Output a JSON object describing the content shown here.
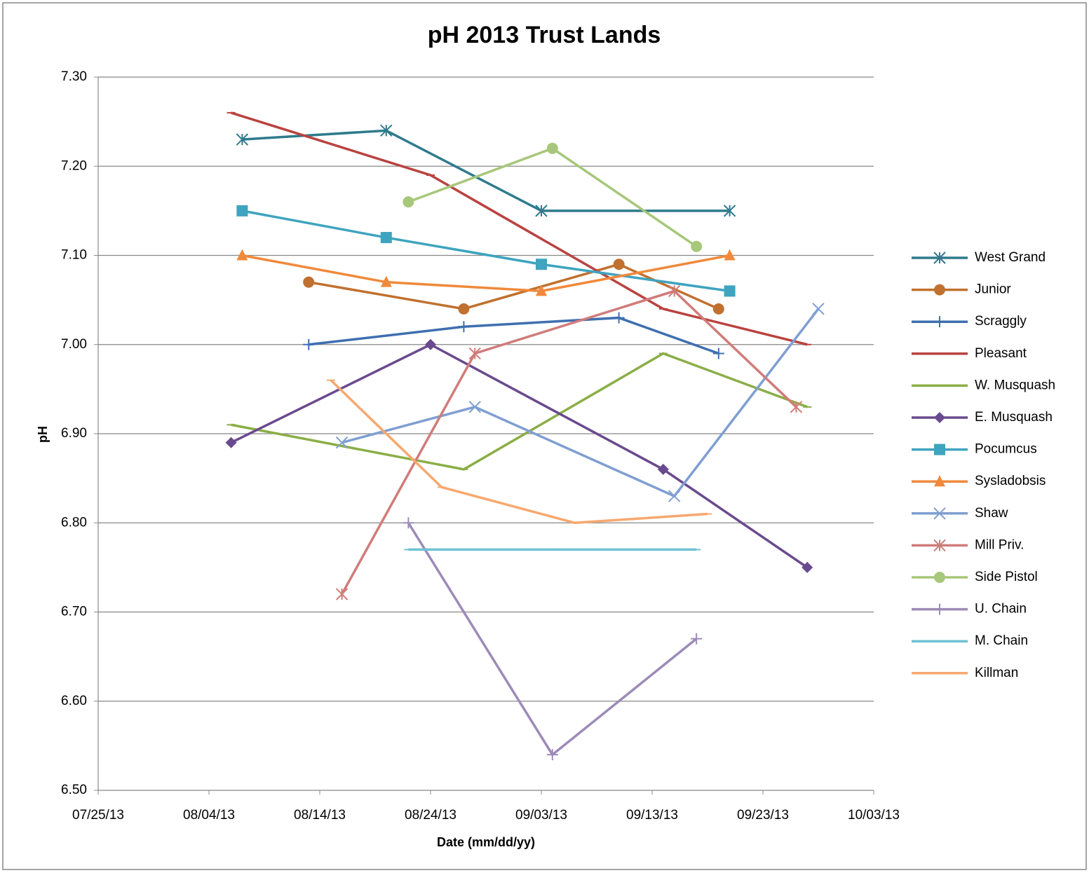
{
  "chart_data": {
    "type": "line",
    "title": "pH 2013  Trust Lands",
    "x_label": "Date (mm/dd/yy)",
    "y_label": "pH",
    "xlim": [
      "07/25/13",
      "10/03/13"
    ],
    "xticks": [
      "07/25/13",
      "08/04/13",
      "08/14/13",
      "08/24/13",
      "09/03/13",
      "09/13/13",
      "09/23/13",
      "10/03/13"
    ],
    "ylim": [
      6.5,
      7.3
    ],
    "yticks": [
      {
        "value": 6.5,
        "label": "6.50"
      },
      {
        "value": 6.6,
        "label": "6.60"
      },
      {
        "value": 6.7,
        "label": "6.70"
      },
      {
        "value": 6.8,
        "label": "6.80"
      },
      {
        "value": 6.9,
        "label": "6.90"
      },
      {
        "value": 7.0,
        "label": "7.00"
      },
      {
        "value": 7.1,
        "label": "7.10"
      },
      {
        "value": 7.2,
        "label": "7.20"
      },
      {
        "value": 7.3,
        "label": "7.30"
      }
    ],
    "grid": true,
    "legend": "right",
    "series": [
      {
        "name": "West Grand",
        "color": "#2e7b8c",
        "marker": "asterisk",
        "x": [
          "08/07/13",
          "08/20/13",
          "09/03/13",
          "09/20/13"
        ],
        "values": [
          7.23,
          7.24,
          7.15,
          7.15
        ]
      },
      {
        "name": "Junior",
        "color": "#c0712f",
        "marker": "circle",
        "x": [
          "08/13/13",
          "08/27/13",
          "09/10/13",
          "09/19/13"
        ],
        "values": [
          7.07,
          7.04,
          7.09,
          7.04
        ]
      },
      {
        "name": "Scraggly",
        "color": "#3f6fb0",
        "marker": "plus",
        "x": [
          "08/13/13",
          "08/27/13",
          "09/10/13",
          "09/19/13"
        ],
        "values": [
          7.0,
          7.02,
          7.03,
          6.99
        ]
      },
      {
        "name": "Pleasant",
        "color": "#b94340",
        "marker": "dash",
        "x": [
          "08/06/13",
          "08/24/13",
          "09/14/13",
          "09/27/13"
        ],
        "values": [
          7.26,
          7.19,
          7.04,
          7.0
        ]
      },
      {
        "name": "W. Musquash",
        "color": "#8aae46",
        "marker": "dash",
        "x": [
          "08/06/13",
          "08/27/13",
          "09/14/13",
          "09/27/13"
        ],
        "values": [
          6.91,
          6.86,
          6.99,
          6.93
        ]
      },
      {
        "name": "E. Musquash",
        "color": "#6a4a8e",
        "marker": "diamond",
        "x": [
          "08/06/13",
          "08/24/13",
          "09/14/13",
          "09/27/13"
        ],
        "values": [
          6.89,
          7.0,
          6.86,
          6.75
        ]
      },
      {
        "name": "Pocumcus",
        "color": "#3ea4bf",
        "marker": "square",
        "x": [
          "08/07/13",
          "08/20/13",
          "09/03/13",
          "09/20/13"
        ],
        "values": [
          7.15,
          7.12,
          7.09,
          7.06
        ]
      },
      {
        "name": "Sysladobsis",
        "color": "#f0893b",
        "marker": "triangle",
        "x": [
          "08/07/13",
          "08/20/13",
          "09/03/13",
          "09/20/13"
        ],
        "values": [
          7.1,
          7.07,
          7.06,
          7.1
        ]
      },
      {
        "name": "Shaw",
        "color": "#7f9fd1",
        "marker": "x",
        "x": [
          "08/16/13",
          "08/28/13",
          "09/15/13",
          "09/28/13"
        ],
        "values": [
          6.89,
          6.93,
          6.83,
          7.04
        ]
      },
      {
        "name": "Mill Priv.",
        "color": "#d07c7a",
        "marker": "asterisk",
        "x": [
          "08/16/13",
          "08/28/13",
          "09/15/13",
          "09/26/13"
        ],
        "values": [
          6.72,
          6.99,
          7.06,
          6.93
        ]
      },
      {
        "name": "Side Pistol",
        "color": "#a7c77a",
        "marker": "circle",
        "x": [
          "08/22/13",
          "09/04/13",
          "09/17/13"
        ],
        "values": [
          7.16,
          7.22,
          7.11
        ]
      },
      {
        "name": "U. Chain",
        "color": "#9d8bb8",
        "marker": "plus",
        "x": [
          "08/22/13",
          "09/04/13",
          "09/17/13"
        ],
        "values": [
          6.8,
          6.54,
          6.67
        ]
      },
      {
        "name": "M. Chain",
        "color": "#6ec1d3",
        "marker": "dash",
        "x": [
          "08/22/13",
          "09/04/13",
          "09/17/13"
        ],
        "values": [
          6.77,
          6.77,
          6.77
        ]
      },
      {
        "name": "Killman",
        "color": "#f7a86f",
        "marker": "dash",
        "x": [
          "08/15/13",
          "08/25/13",
          "09/06/13",
          "09/18/13"
        ],
        "values": [
          6.96,
          6.84,
          6.8,
          6.81
        ]
      }
    ]
  }
}
